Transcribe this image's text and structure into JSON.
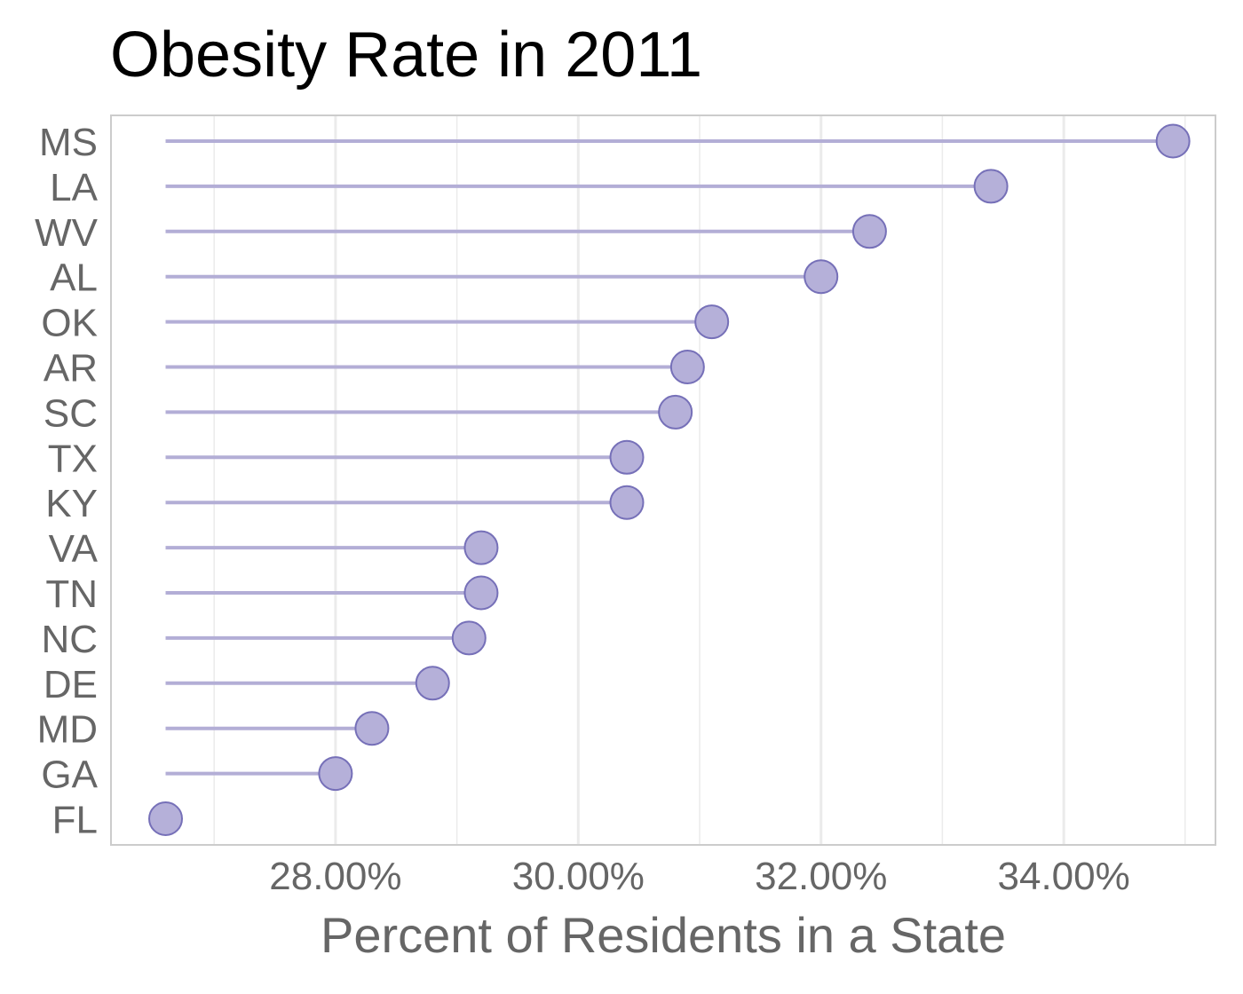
{
  "chart_data": {
    "type": "lollipop",
    "title": "Obesity Rate in 2011",
    "xlabel": "Percent of Residents in a State",
    "ylabel": "",
    "xlim": [
      26.15,
      35.25
    ],
    "x_ticks": [
      28,
      30,
      32,
      34
    ],
    "x_tick_labels": [
      "28.00%",
      "30.00%",
      "32.00%",
      "34.00%"
    ],
    "baseline": 26.6,
    "categories": [
      "MS",
      "LA",
      "WV",
      "AL",
      "OK",
      "AR",
      "SC",
      "TX",
      "KY",
      "VA",
      "TN",
      "NC",
      "DE",
      "MD",
      "GA",
      "FL"
    ],
    "values": [
      34.9,
      33.4,
      32.4,
      32.0,
      31.1,
      30.9,
      30.8,
      30.4,
      30.4,
      29.2,
      29.2,
      29.1,
      28.8,
      28.3,
      28.0,
      26.6
    ],
    "grid": true,
    "colors": {
      "point_fill": "#b5b0d9",
      "point_stroke": "#7670b8",
      "stem": "#b3aed6",
      "grid": "#ebebeb",
      "panel_border": "#cccccc"
    }
  }
}
